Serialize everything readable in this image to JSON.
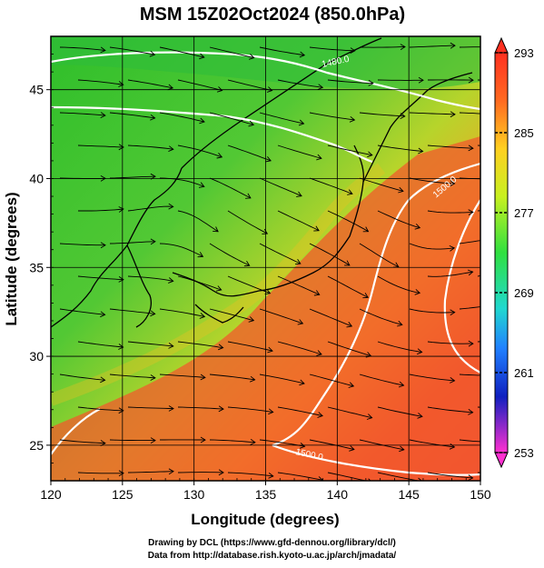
{
  "title": "MSM 15Z02Oct2024 (850.0hPa)",
  "xlabel": "Longitude (degrees)",
  "ylabel": "Latitude  (degrees)",
  "x_ticks": [
    "120",
    "125",
    "130",
    "135",
    "140",
    "145",
    "150"
  ],
  "y_ticks": [
    "25",
    "30",
    "35",
    "40",
    "45"
  ],
  "colorbar_ticks": [
    "293",
    "285",
    "277",
    "269",
    "261",
    "253"
  ],
  "contour_labels": [
    "1480.0",
    "1500.0",
    "1500.0"
  ],
  "credits": {
    "line1": "Drawing by DCL (https://www.gfd-dennou.org/library/dcl/)",
    "line2": "Data from http://database.rish.kyoto-u.ac.jp/arch/jmadata/"
  },
  "chart_data": {
    "type": "heatmap",
    "field": "temperature (K) with wind streamlines and geopotential height contours",
    "xlim": [
      120,
      150
    ],
    "ylim": [
      23,
      48
    ],
    "colorbar_range": [
      253,
      293
    ],
    "colors": {
      "warm": "#f24030",
      "cold": "#d020e0",
      "mid_green": "#30c030",
      "contour": "#ffffff",
      "coast": "#000000"
    }
  }
}
